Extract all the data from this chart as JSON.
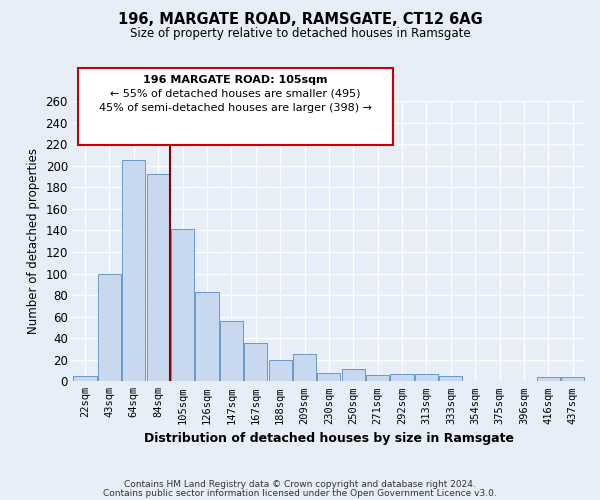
{
  "title": "196, MARGATE ROAD, RAMSGATE, CT12 6AG",
  "subtitle": "Size of property relative to detached houses in Ramsgate",
  "xlabel": "Distribution of detached houses by size in Ramsgate",
  "ylabel": "Number of detached properties",
  "bar_labels": [
    "22sqm",
    "43sqm",
    "64sqm",
    "84sqm",
    "105sqm",
    "126sqm",
    "147sqm",
    "167sqm",
    "188sqm",
    "209sqm",
    "230sqm",
    "250sqm",
    "271sqm",
    "292sqm",
    "313sqm",
    "333sqm",
    "354sqm",
    "375sqm",
    "396sqm",
    "416sqm",
    "437sqm"
  ],
  "bar_values": [
    5,
    100,
    205,
    192,
    141,
    83,
    56,
    36,
    20,
    25,
    8,
    11,
    6,
    7,
    7,
    5,
    0,
    0,
    0,
    4,
    4
  ],
  "highlight_index": 4,
  "bar_color_normal": "#c8d8ee",
  "bar_edge_color": "#6699cc",
  "ylim": [
    0,
    260
  ],
  "yticks": [
    0,
    20,
    40,
    60,
    80,
    100,
    120,
    140,
    160,
    180,
    200,
    220,
    240,
    260
  ],
  "annotation_title": "196 MARGATE ROAD: 105sqm",
  "annotation_line1": "← 55% of detached houses are smaller (495)",
  "annotation_line2": "45% of semi-detached houses are larger (398) →",
  "annotation_box_color": "#ffffff",
  "annotation_box_edge": "#cc0000",
  "footer_line1": "Contains HM Land Registry data © Crown copyright and database right 2024.",
  "footer_line2": "Contains public sector information licensed under the Open Government Licence v3.0.",
  "background_color": "#e8eef8",
  "plot_bg_color": "#e8eef8",
  "grid_color": "#ffffff",
  "vline_color": "#8b0000"
}
